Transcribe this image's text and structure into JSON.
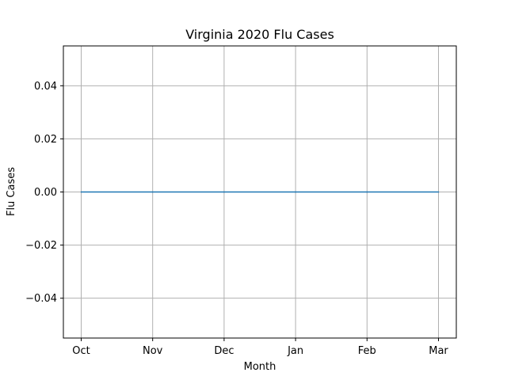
{
  "chart_data": {
    "type": "line",
    "title": "Virginia 2020 Flu Cases",
    "xlabel": "Month",
    "ylabel": "Flu Cases",
    "categories": [
      "Oct",
      "Nov",
      "Dec",
      "Jan",
      "Feb",
      "Mar"
    ],
    "series": [
      {
        "values": [
          0,
          0,
          0,
          0,
          0,
          0
        ],
        "color": "#1f77b4"
      }
    ],
    "ylim": [
      -0.055,
      0.055
    ],
    "yticks": [
      -0.04,
      -0.02,
      0.0,
      0.02,
      0.04
    ],
    "ytick_labels": [
      "−0.04",
      "−0.02",
      "0.00",
      "0.02",
      "0.04"
    ],
    "grid": true,
    "legend": "none"
  }
}
